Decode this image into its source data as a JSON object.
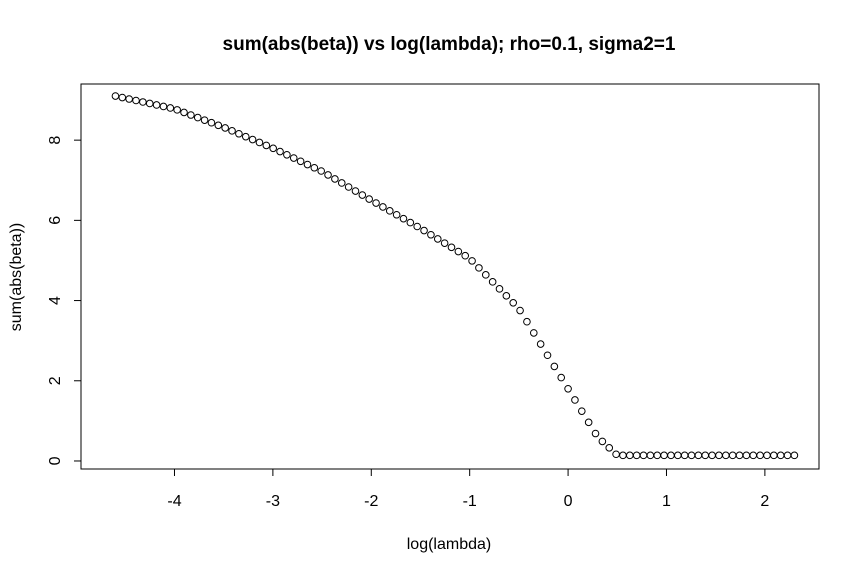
{
  "chart_data": {
    "type": "scatter",
    "title": "sum(abs(beta)) vs log(lambda); rho=0.1, sigma2=1",
    "xlabel": "log(lambda)",
    "ylabel": "sum(abs(beta))",
    "xlim": [
      -4.95,
      2.55
    ],
    "ylim": [
      -0.2,
      9.4
    ],
    "xticks": [
      -4,
      -3,
      -2,
      -1,
      0,
      1,
      2
    ],
    "yticks": [
      0,
      2,
      4,
      6,
      8
    ],
    "xtick_labels": [
      "-4",
      "-3",
      "-2",
      "-1",
      "0",
      "1",
      "2"
    ],
    "ytick_labels": [
      "0",
      "2",
      "4",
      "6",
      "8"
    ],
    "grid": false,
    "legend": "none",
    "marker": "open circle",
    "n_points": 100,
    "x_start": -4.6,
    "x_end": 2.3,
    "curve_knots": {
      "x": [
        -4.6,
        -4.0,
        -3.5,
        -3.0,
        -2.5,
        -2.0,
        -1.5,
        -1.0,
        -0.5,
        -0.3,
        0.0,
        0.3,
        0.5,
        2.3
      ],
      "y": [
        9.1,
        8.78,
        8.32,
        7.8,
        7.22,
        6.5,
        5.8,
        5.05,
        3.8,
        3.0,
        1.8,
        0.6,
        0.14,
        0.14
      ]
    },
    "series_color": "#000000"
  }
}
